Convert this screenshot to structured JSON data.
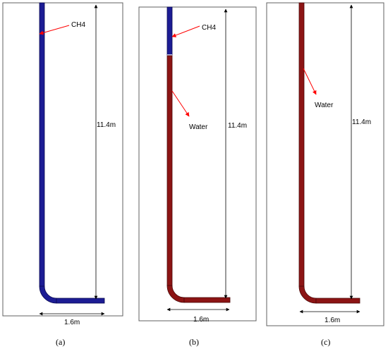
{
  "panels": [
    {
      "caption": "(a)",
      "height_label": "11.4m",
      "width_label": "1.6m",
      "labels": [
        "CH4"
      ]
    },
    {
      "caption": "(b)",
      "height_label": "11.4m",
      "width_label": "1.6m",
      "labels": [
        "CH4",
        "Water"
      ]
    },
    {
      "caption": "(c)",
      "height_label": "11.4m",
      "width_label": "1.6m",
      "labels": [
        "Water"
      ]
    }
  ],
  "colors": {
    "methane": "#1c1c94",
    "water": "#8c1414",
    "arrow": "#ff0000",
    "dimension": "#000000"
  }
}
